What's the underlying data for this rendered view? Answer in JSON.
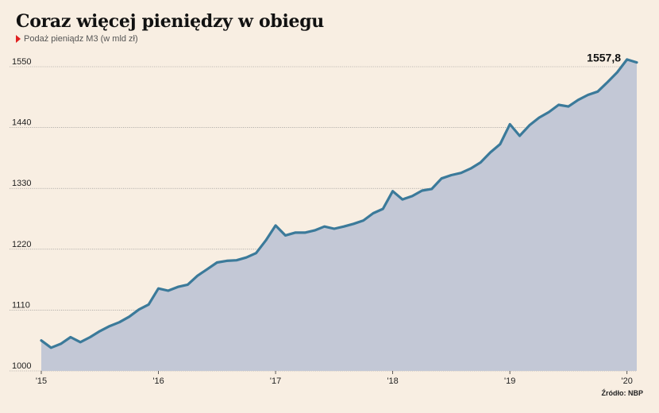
{
  "title": "Coraz więcej pieniędzy w obiegu",
  "subtitle": "Podaż pieniądz M3 (w mld zł)",
  "source": "Źródło: NBP",
  "colors": {
    "background": "#f8eee2",
    "area_fill": "#c3c8d6",
    "line": "#3b7a9a",
    "legend_marker": "#e02020",
    "grid": "#888888"
  },
  "chart_data": {
    "type": "area",
    "title": "Coraz więcej pieniędzy w obiegu",
    "subtitle": "Podaż pieniądz M3 (w mld zł)",
    "xlabel": "",
    "ylabel": "",
    "ylim": [
      1000,
      1570
    ],
    "yticks": [
      1000,
      1110,
      1220,
      1330,
      1440,
      1550
    ],
    "ytick_labels": [
      "1000",
      "1110",
      "1220",
      "1330",
      "1440",
      "1550"
    ],
    "xtick_labels": [
      "'15",
      "'16",
      "'17",
      "'18",
      "'19",
      "'20"
    ],
    "xtick_positions": [
      0,
      12,
      24,
      36,
      48,
      60
    ],
    "grid": true,
    "end_label": "1557,8",
    "series": [
      {
        "values": [
          1055,
          1042,
          1049,
          1061,
          1052,
          1061,
          1072,
          1081,
          1088,
          1098,
          1111,
          1120,
          1149,
          1145,
          1152,
          1156,
          1172,
          1184,
          1196,
          1199,
          1200,
          1205,
          1213,
          1236,
          1263,
          1245,
          1250,
          1250,
          1254,
          1261,
          1257,
          1261,
          1266,
          1272,
          1285,
          1293,
          1325,
          1310,
          1316,
          1326,
          1329,
          1348,
          1354,
          1358,
          1366,
          1377,
          1395,
          1410,
          1446,
          1425,
          1444,
          1458,
          1468,
          1481,
          1478,
          1490,
          1499,
          1505,
          1522,
          1540,
          1563,
          1557.8
        ]
      }
    ]
  }
}
